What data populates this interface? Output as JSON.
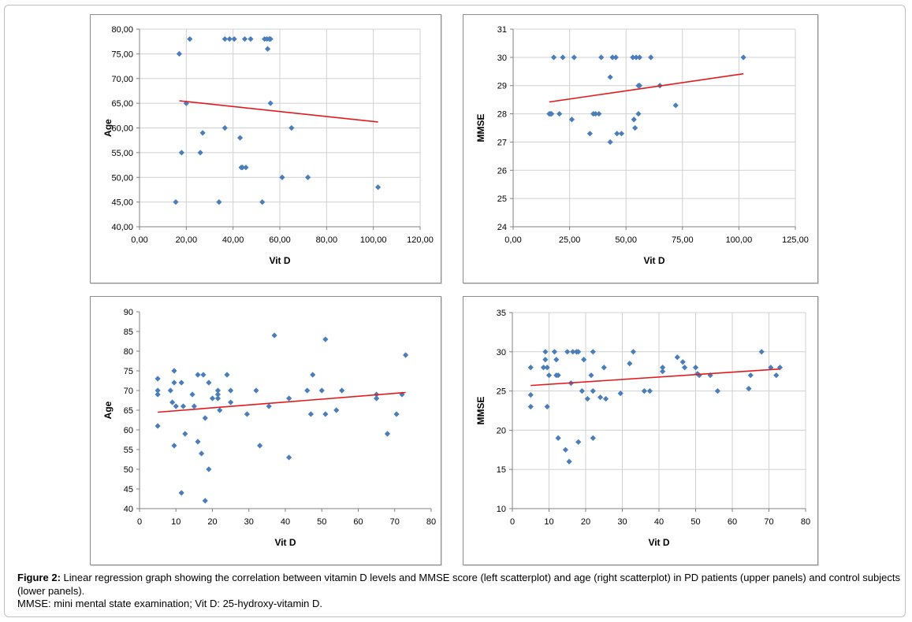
{
  "colors": {
    "point": "#4a7ebb",
    "regression": "#e31a1c",
    "grid": "#d0d0d0",
    "axis": "#808080",
    "text": "#000000"
  },
  "caption": {
    "lead": "Figure 2:",
    "text": " Linear regression graph showing the correlation between vitamin D levels and MMSE score (left scatterplot) and age (right scatterplot) in PD patients (upper panels) and control subjects (lower panels).",
    "abbrev": "MMSE: mini mental state examination; Vit D: 25-hydroxy-vitamin D."
  },
  "chart_data": [
    {
      "id": "pd-age",
      "type": "scatter",
      "title": "",
      "xlabel": "Vit D",
      "ylabel": "Age",
      "xlim": [
        0,
        120
      ],
      "ylim": [
        40,
        80
      ],
      "xticks": [
        0,
        20,
        40,
        60,
        80,
        100,
        120
      ],
      "yticks": [
        40,
        45,
        50,
        55,
        60,
        65,
        70,
        75,
        80
      ],
      "xtick_labels": [
        "0,00",
        "20,00",
        "40,00",
        "60,00",
        "80,00",
        "100,00",
        "120,00"
      ],
      "ytick_labels": [
        "40,00",
        "45,00",
        "50,00",
        "55,00",
        "60,00",
        "65,00",
        "70,00",
        "75,00",
        "80,00"
      ],
      "grid": true,
      "points": [
        [
          21.5,
          78
        ],
        [
          36.5,
          78
        ],
        [
          38.5,
          78
        ],
        [
          40.5,
          78
        ],
        [
          45,
          78
        ],
        [
          47.5,
          78
        ],
        [
          53.5,
          78
        ],
        [
          54.5,
          78
        ],
        [
          55.5,
          78
        ],
        [
          56,
          78
        ],
        [
          17,
          75
        ],
        [
          54.8,
          76
        ],
        [
          20,
          65
        ],
        [
          56,
          65
        ],
        [
          27,
          59
        ],
        [
          36.5,
          60
        ],
        [
          65,
          60
        ],
        [
          43,
          58
        ],
        [
          18,
          55
        ],
        [
          26,
          55
        ],
        [
          43.5,
          52
        ],
        [
          44,
          52
        ],
        [
          45.5,
          52
        ],
        [
          61,
          50
        ],
        [
          72,
          50
        ],
        [
          102,
          48
        ],
        [
          15.5,
          45
        ],
        [
          34,
          45
        ],
        [
          52.5,
          45
        ]
      ],
      "regression": [
        [
          17,
          65.5
        ],
        [
          102,
          61.2
        ]
      ]
    },
    {
      "id": "pd-mmse",
      "type": "scatter",
      "title": "",
      "xlabel": "Vit D",
      "ylabel": "MMSE",
      "xlim": [
        0,
        125
      ],
      "ylim": [
        24,
        31
      ],
      "xticks": [
        0,
        25,
        50,
        75,
        100,
        125
      ],
      "yticks": [
        24,
        25,
        26,
        27,
        28,
        29,
        30,
        31
      ],
      "xtick_labels": [
        "0,00",
        "25,00",
        "50,00",
        "75,00",
        "100,00",
        "125,00"
      ],
      "ytick_labels": [
        "24",
        "25",
        "26",
        "27",
        "28",
        "29",
        "30",
        "31"
      ],
      "grid": true,
      "points": [
        [
          18,
          30
        ],
        [
          22,
          30
        ],
        [
          27,
          30
        ],
        [
          39,
          30
        ],
        [
          44,
          30
        ],
        [
          45.5,
          30
        ],
        [
          53,
          30
        ],
        [
          54.5,
          30
        ],
        [
          56,
          30
        ],
        [
          61,
          30
        ],
        [
          102,
          30
        ],
        [
          43,
          29.3
        ],
        [
          55.5,
          29
        ],
        [
          56,
          29
        ],
        [
          65,
          29
        ],
        [
          72,
          28.3
        ],
        [
          16,
          28
        ],
        [
          16.5,
          28
        ],
        [
          17,
          28
        ],
        [
          20.5,
          28
        ],
        [
          35.5,
          28
        ],
        [
          36.5,
          28
        ],
        [
          38,
          28
        ],
        [
          55.5,
          28
        ],
        [
          26,
          27.8
        ],
        [
          53.5,
          27.8
        ],
        [
          54,
          27.5
        ],
        [
          34,
          27.3
        ],
        [
          46,
          27.3
        ],
        [
          48,
          27.3
        ],
        [
          43,
          27
        ]
      ],
      "regression": [
        [
          16,
          28.42
        ],
        [
          102,
          29.42
        ]
      ]
    },
    {
      "id": "control-age",
      "type": "scatter",
      "title": "",
      "xlabel": "Vit D",
      "ylabel": "Age",
      "xlim": [
        0,
        80
      ],
      "ylim": [
        40,
        90
      ],
      "xticks": [
        0,
        10,
        20,
        30,
        40,
        50,
        60,
        70,
        80
      ],
      "yticks": [
        40,
        45,
        50,
        55,
        60,
        65,
        70,
        75,
        80,
        85,
        90
      ],
      "xtick_labels": [
        "0",
        "10",
        "20",
        "30",
        "40",
        "50",
        "60",
        "70",
        "80"
      ],
      "ytick_labels": [
        "40",
        "45",
        "50",
        "55",
        "60",
        "65",
        "70",
        "75",
        "80",
        "85",
        "90"
      ],
      "grid": false,
      "points": [
        [
          5,
          73
        ],
        [
          5,
          70
        ],
        [
          5,
          69
        ],
        [
          5,
          61
        ],
        [
          8.5,
          70
        ],
        [
          9,
          67
        ],
        [
          9.5,
          75
        ],
        [
          9.5,
          72
        ],
        [
          10,
          66
        ],
        [
          9.5,
          56
        ],
        [
          11.5,
          72
        ],
        [
          12,
          66
        ],
        [
          12.5,
          59
        ],
        [
          11.5,
          44
        ],
        [
          14.5,
          69
        ],
        [
          15,
          66
        ],
        [
          16,
          74
        ],
        [
          16,
          57
        ],
        [
          17,
          54
        ],
        [
          17.5,
          74
        ],
        [
          18,
          63
        ],
        [
          18,
          42
        ],
        [
          19,
          72
        ],
        [
          19,
          50
        ],
        [
          20,
          68
        ],
        [
          21.5,
          70
        ],
        [
          21.5,
          69
        ],
        [
          21.5,
          68
        ],
        [
          22,
          65
        ],
        [
          24,
          74
        ],
        [
          25,
          70
        ],
        [
          25,
          67
        ],
        [
          29.5,
          64
        ],
        [
          32,
          70
        ],
        [
          33,
          56
        ],
        [
          35.5,
          66
        ],
        [
          37,
          84
        ],
        [
          41,
          68
        ],
        [
          41,
          53
        ],
        [
          46,
          70
        ],
        [
          47.5,
          74
        ],
        [
          47,
          64
        ],
        [
          50,
          70
        ],
        [
          51,
          83
        ],
        [
          51,
          64
        ],
        [
          54,
          65
        ],
        [
          55.5,
          70
        ],
        [
          65,
          69
        ],
        [
          65,
          68
        ],
        [
          68,
          59
        ],
        [
          70.5,
          64
        ],
        [
          72,
          69
        ],
        [
          73,
          79
        ]
      ],
      "regression": [
        [
          5,
          64.5
        ],
        [
          73,
          69.5
        ]
      ]
    },
    {
      "id": "control-mmse",
      "type": "scatter",
      "title": "",
      "xlabel": "Vit D",
      "ylabel": "MMSE",
      "xlim": [
        0,
        80
      ],
      "ylim": [
        10,
        35
      ],
      "xticks": [
        0,
        10,
        20,
        30,
        40,
        50,
        60,
        70,
        80
      ],
      "yticks": [
        10,
        15,
        20,
        25,
        30,
        35
      ],
      "xtick_labels": [
        "0",
        "10",
        "20",
        "30",
        "40",
        "50",
        "60",
        "70",
        "80"
      ],
      "ytick_labels": [
        "10",
        "15",
        "20",
        "25",
        "30",
        "35"
      ],
      "grid": true,
      "points": [
        [
          5,
          28
        ],
        [
          5,
          24.5
        ],
        [
          5,
          23
        ],
        [
          8.5,
          28
        ],
        [
          9,
          29
        ],
        [
          9,
          30
        ],
        [
          9.5,
          28
        ],
        [
          9.5,
          23
        ],
        [
          10,
          27
        ],
        [
          11.5,
          30
        ],
        [
          12,
          29
        ],
        [
          12,
          27
        ],
        [
          12.5,
          27
        ],
        [
          12.5,
          19
        ],
        [
          14.5,
          17.5
        ],
        [
          15,
          30
        ],
        [
          16,
          26
        ],
        [
          15.5,
          16
        ],
        [
          16.5,
          30
        ],
        [
          17.5,
          30
        ],
        [
          18,
          30
        ],
        [
          18,
          18.5
        ],
        [
          19,
          25
        ],
        [
          19.5,
          29
        ],
        [
          20.5,
          24
        ],
        [
          21.5,
          27
        ],
        [
          22,
          25
        ],
        [
          22,
          19
        ],
        [
          22,
          30
        ],
        [
          24,
          24.2
        ],
        [
          25,
          28
        ],
        [
          25.5,
          24
        ],
        [
          29.5,
          24.7
        ],
        [
          32,
          28.5
        ],
        [
          33,
          30
        ],
        [
          36,
          25
        ],
        [
          37.5,
          25
        ],
        [
          41,
          28
        ],
        [
          41,
          27.5
        ],
        [
          45,
          29.3
        ],
        [
          46.5,
          28.7
        ],
        [
          47,
          28
        ],
        [
          50,
          28
        ],
        [
          50.5,
          27.2
        ],
        [
          51,
          27
        ],
        [
          54,
          27
        ],
        [
          56,
          25
        ],
        [
          64.5,
          25.3
        ],
        [
          65,
          27
        ],
        [
          68,
          30
        ],
        [
          70.5,
          28
        ],
        [
          72,
          27
        ],
        [
          73,
          28
        ]
      ],
      "regression": [
        [
          5,
          25.7
        ],
        [
          73,
          27.8
        ]
      ]
    }
  ]
}
